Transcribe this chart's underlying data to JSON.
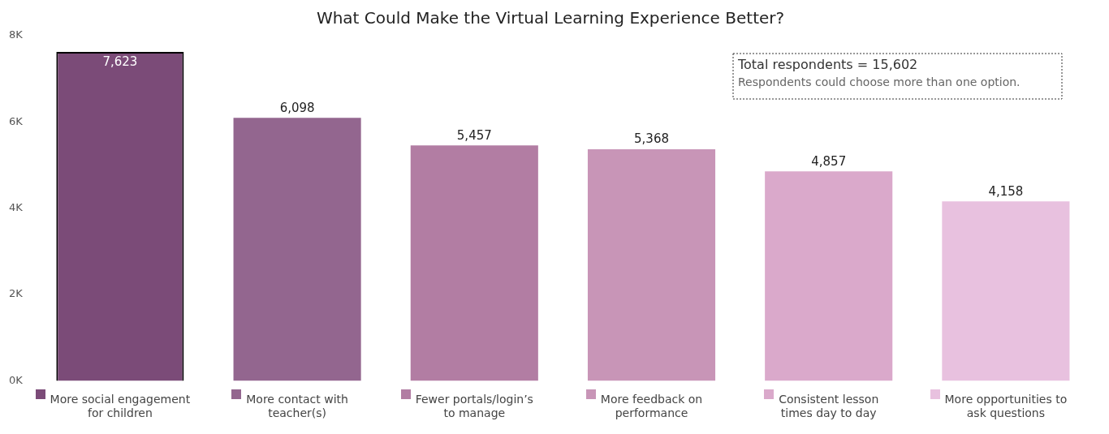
{
  "chart_data": {
    "type": "bar",
    "title": "What Could Make the Virtual Learning Experience Better?",
    "categories": [
      "More social engagement for children",
      "More contact with teacher(s)",
      "Fewer portals/login’s to manage",
      "More feedback on performance",
      "Consistent lesson times day to day",
      "More opportunities to ask questions"
    ],
    "values": [
      7623,
      6098,
      5457,
      5368,
      4857,
      4158
    ],
    "value_labels": [
      "7,623",
      "6,098",
      "5,457",
      "5,368",
      "4,857",
      "4,158"
    ],
    "colors": [
      "#7b4b78",
      "#93668f",
      "#b27da3",
      "#c895b7",
      "#daa9cb",
      "#e8c1df"
    ],
    "ylim": [
      0,
      8000
    ],
    "yticks": [
      {
        "value": 0,
        "label": "0K"
      },
      {
        "value": 2000,
        "label": "2K"
      },
      {
        "value": 4000,
        "label": "4K"
      },
      {
        "value": 6000,
        "label": "6K"
      },
      {
        "value": 8000,
        "label": "8K"
      }
    ],
    "annotations": [
      "Total respondents = 15,602",
      "Respondents could choose more than one option."
    ]
  }
}
